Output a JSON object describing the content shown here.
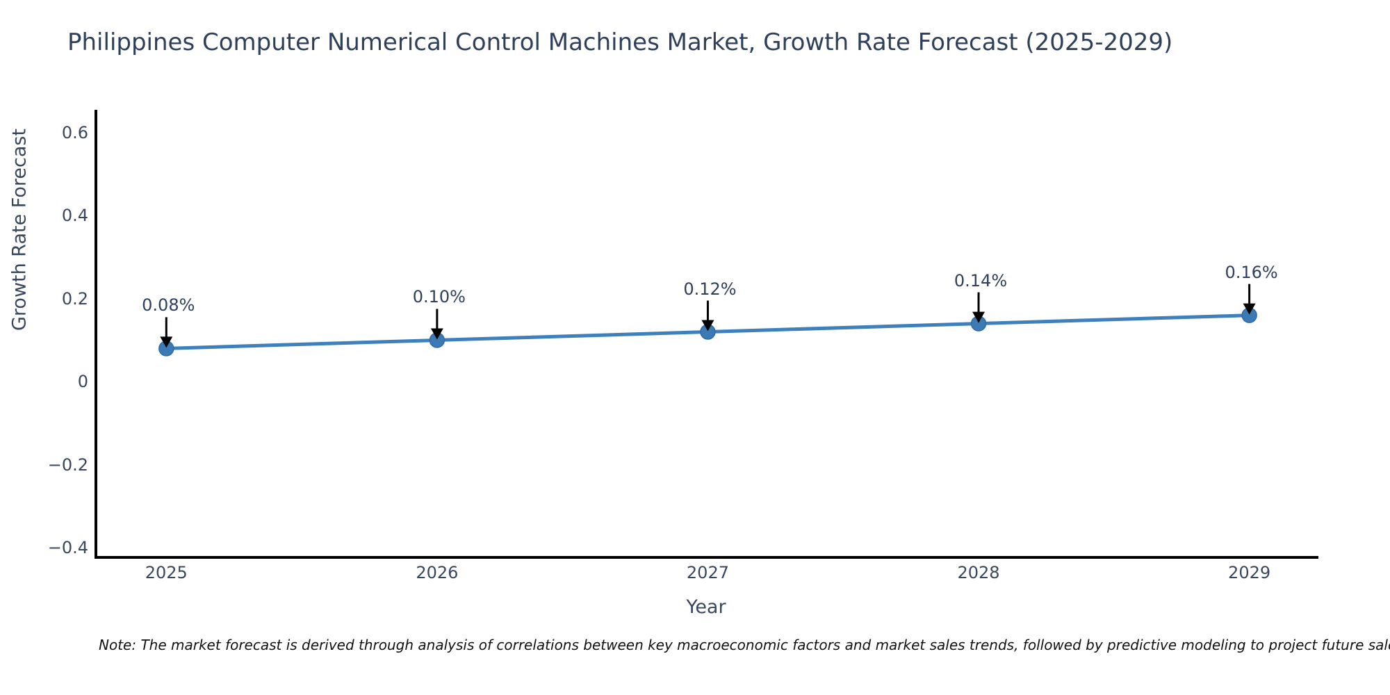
{
  "title": "Philippines Computer Numerical Control Machines Market, Growth Rate Forecast (2025-2029)",
  "footnote": "Note: The market forecast is derived through analysis of correlations between key macroeconomic factors and market sales trends, followed by predictive modeling to project future sales",
  "colors": {
    "line_blue": "#3f7fbb",
    "marker_blue": "#3c7ab5",
    "marker_edge": "#2f6ba6",
    "arrow_black": "#000000",
    "title_text": "#2e3f5c",
    "tick_text": "#39475e",
    "axis_line": "#000000",
    "background": "#ffffff",
    "note_text": "#111111"
  },
  "chart_data": {
    "type": "line",
    "title": "Philippines Computer Numerical Control Machines Market, Growth Rate Forecast (2025-2029)",
    "xlabel": "Year",
    "ylabel": "Growth Rate Forecast",
    "x": [
      2025,
      2026,
      2027,
      2028,
      2029
    ],
    "y": [
      0.08,
      0.1,
      0.12,
      0.14,
      0.16
    ],
    "series": [
      {
        "name": "Growth Rate Forecast",
        "values": [
          0.08,
          0.1,
          0.12,
          0.14,
          0.16
        ]
      }
    ],
    "point_labels": [
      "0.08%",
      "0.10%",
      "0.12%",
      "0.14%",
      "0.16%"
    ],
    "x_tick_labels": [
      "2025",
      "2026",
      "2027",
      "2028",
      "2029"
    ],
    "y_ticks": [
      0.6,
      0.4,
      0.2,
      0,
      -0.2,
      -0.4
    ],
    "y_tick_labels": [
      "0.6",
      "0.4",
      "0.2",
      "0",
      "−0.2",
      "−0.4"
    ],
    "x_range": [
      2024.74,
      2029.25
    ],
    "y_range": [
      -0.42,
      0.655
    ],
    "grid": false,
    "legend": false,
    "annotations_have_arrows": true
  }
}
